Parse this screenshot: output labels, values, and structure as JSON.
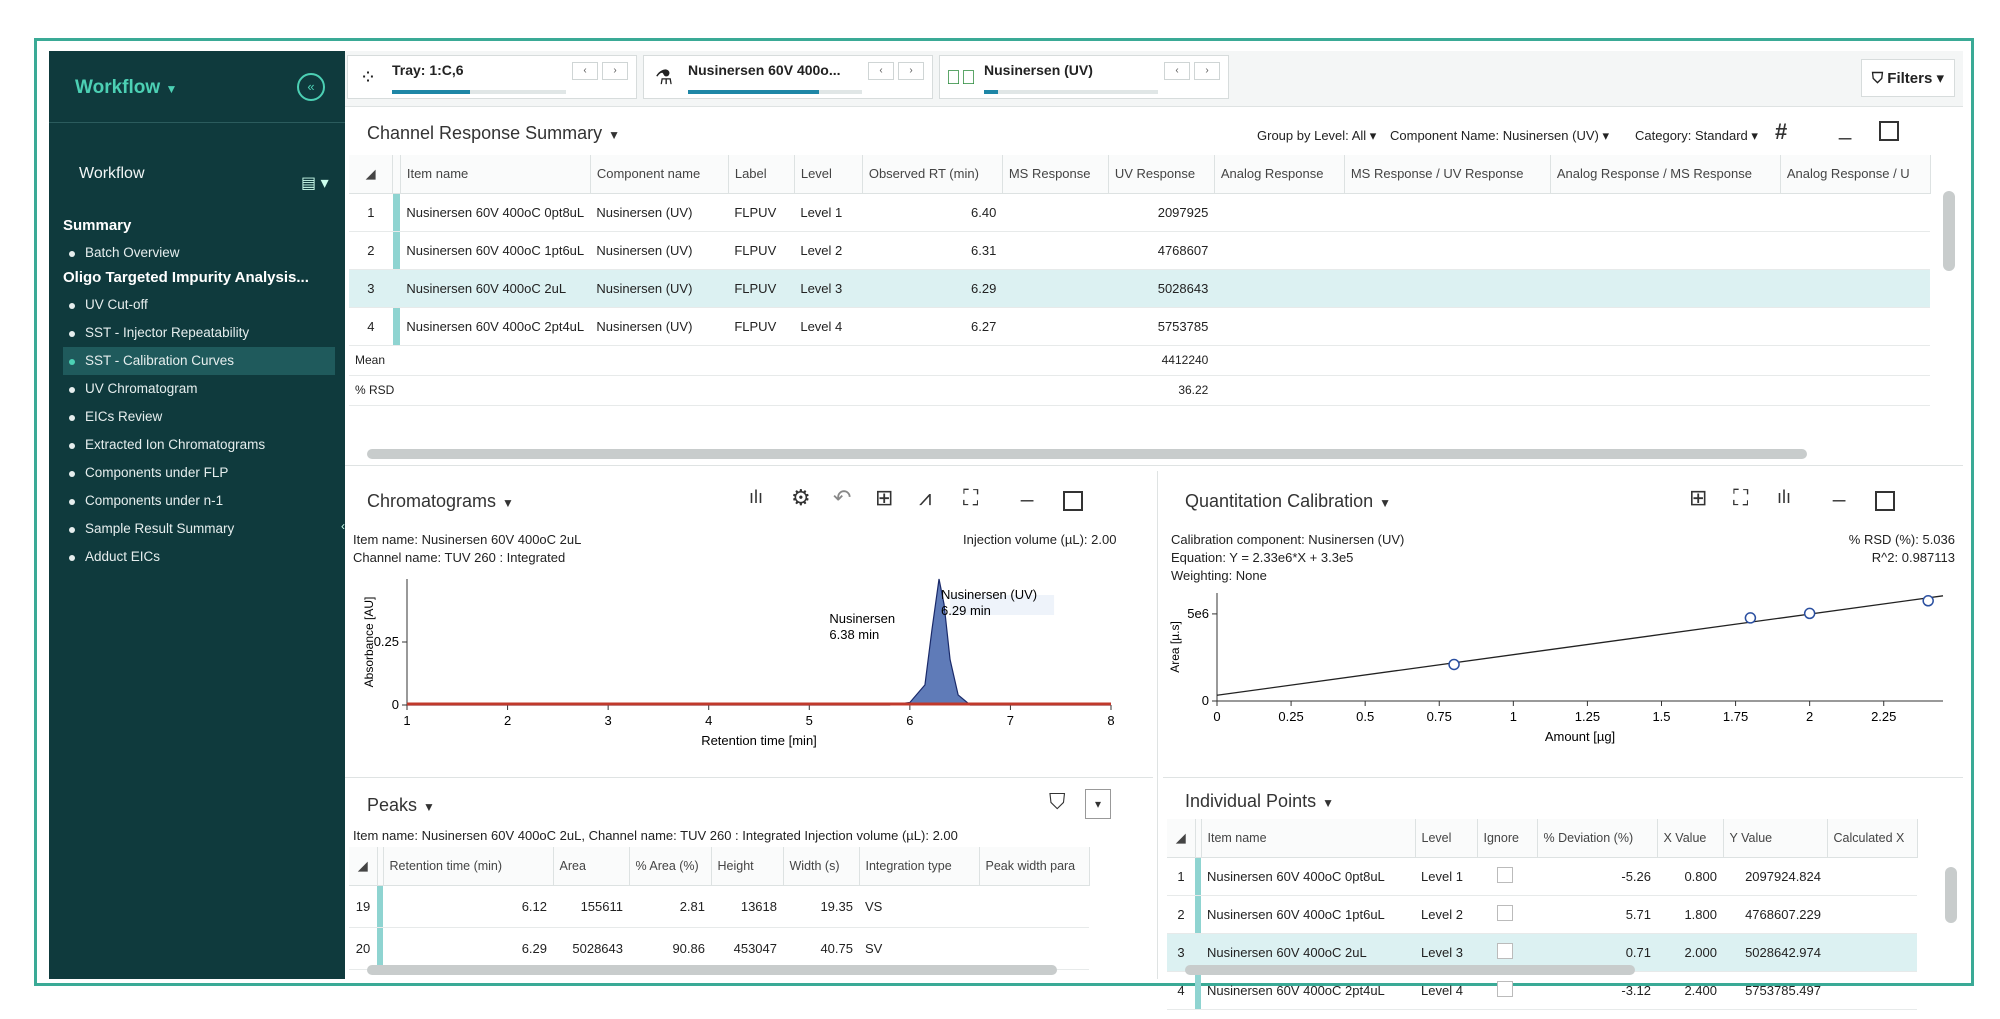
{
  "sidebar": {
    "title": "Workflow",
    "subtitle": "Workflow",
    "groups": [
      {
        "label": "Summary",
        "items": [
          "Batch Overview"
        ]
      },
      {
        "label": "Oligo Targeted Impurity Analysis...",
        "items": [
          "UV Cut-off",
          "SST - Injector Repeatability",
          "SST - Calibration Curves",
          "UV Chromatogram",
          "EICs Review",
          "Extracted Ion Chromatograms",
          "Components under FLP",
          "Components under n-1",
          "Sample Result Summary",
          "Adduct EICs"
        ]
      }
    ],
    "active_item": "SST - Calibration Curves"
  },
  "topbar": {
    "tray_label": "Tray: 1:C,6",
    "sample_label": "Nusinersen 60V 400o...",
    "component_label": "Nusinersen (UV)",
    "filters_label": "Filters",
    "tray_progress": 0.45,
    "sample_progress": 0.75,
    "component_progress": 0.08
  },
  "channel_summary": {
    "title": "Channel Response Summary",
    "group_by_label": "Group by Level:",
    "group_by_value": "All",
    "component_name_label": "Component Name:",
    "component_name_value": "Nusinersen (UV)",
    "category_label": "Category:",
    "category_value": "Standard",
    "columns": [
      "Item name",
      "Component name",
      "Label",
      "Level",
      "Observed RT (min)",
      "MS Response",
      "UV Response",
      "Analog Response",
      "MS Response / UV Response",
      "Analog Response / MS Response",
      "Analog Response / U"
    ],
    "rows": [
      [
        "1",
        "Nusinersen 60V 400oC 0pt8uL",
        "Nusinersen (UV)",
        "FLPUV",
        "Level 1",
        "6.40",
        "",
        "2097925"
      ],
      [
        "2",
        "Nusinersen 60V 400oC 1pt6uL",
        "Nusinersen (UV)",
        "FLPUV",
        "Level 2",
        "6.31",
        "",
        "4768607"
      ],
      [
        "3",
        "Nusinersen 60V 400oC 2uL",
        "Nusinersen (UV)",
        "FLPUV",
        "Level 3",
        "6.29",
        "",
        "5028643"
      ],
      [
        "4",
        "Nusinersen 60V 400oC 2pt4uL",
        "Nusinersen (UV)",
        "FLPUV",
        "Level 4",
        "6.27",
        "",
        "5753785"
      ]
    ],
    "mean_label": "Mean",
    "mean_value": "4412240",
    "rsd_label": "% RSD",
    "rsd_value": "36.22"
  },
  "chromatograms": {
    "title": "Chromatograms",
    "item_name": "Item name: Nusinersen 60V 400oC 2uL",
    "channel_name": "Channel name: TUV 260 : Integrated",
    "injection_volume": "Injection volume (µL): 2.00",
    "ylabel": "Absorbance [AU]",
    "xlabel": "Retention time [min]",
    "peak_label_1a": "Nusinersen (UV)",
    "peak_label_1b": "6.29 min",
    "peak_label_2a": "Nusinersen",
    "peak_label_2b": "6.38 min"
  },
  "chart_data": [
    {
      "type": "line",
      "title": "",
      "xlabel": "Retention time [min]",
      "ylabel": "Absorbance [AU]",
      "xlim": [
        1,
        8
      ],
      "ylim": [
        0,
        0.5
      ],
      "x_ticks": [
        "1",
        "2",
        "3",
        "4",
        "5",
        "6",
        "7",
        "8"
      ],
      "y_ticks": [
        "0",
        "0.25"
      ],
      "series": [
        {
          "x": [
            1.0,
            5.8,
            6.0,
            6.15,
            6.22,
            6.29,
            6.34,
            6.4,
            6.48,
            6.6,
            8.0
          ],
          "y": [
            0.0,
            0.0,
            0.01,
            0.08,
            0.3,
            0.5,
            0.4,
            0.18,
            0.04,
            0.0,
            0.0
          ]
        }
      ],
      "annotations": [
        "Nusinersen (UV) 6.29 min",
        "Nusinersen 6.38 min"
      ]
    },
    {
      "type": "scatter",
      "title": "",
      "xlabel": "Amount [µg]",
      "ylabel": "Area [µ.s]",
      "xlim": [
        0,
        2.45
      ],
      "ylim": [
        0,
        6200000
      ],
      "x_ticks": [
        "0",
        "0.25",
        "0.5",
        "0.75",
        "1",
        "1.25",
        "1.5",
        "1.75",
        "2",
        "2.25"
      ],
      "y_ticks": [
        "0",
        "5e6"
      ],
      "points": [
        {
          "x": 0.8,
          "y": 2097925
        },
        {
          "x": 1.8,
          "y": 4768607
        },
        {
          "x": 2.0,
          "y": 5028643
        },
        {
          "x": 2.4,
          "y": 5753785
        }
      ],
      "fit": {
        "slope": 2330000,
        "intercept": 330000
      }
    }
  ],
  "calibration": {
    "title": "Quantitation Calibration",
    "component": "Calibration component: Nusinersen (UV)",
    "equation": "Equation: Y = 2.33e6*X + 3.3e5",
    "weighting": "Weighting: None",
    "rsd": "% RSD (%): 5.036",
    "r2": "R^2: 0.987113",
    "ylabel": "Area [µ.s]",
    "xlabel": "Amount [µg]"
  },
  "peaks": {
    "title": "Peaks",
    "info": "Item name: Nusinersen 60V 400oC 2uL, Channel name: TUV 260 : Integrated Injection volume (µL): 2.00",
    "columns": [
      "Retention time (min)",
      "Area",
      "% Area (%)",
      "Height",
      "Width (s)",
      "Integration type",
      "Peak width para"
    ],
    "rows": [
      [
        "19",
        "6.12",
        "155611",
        "2.81",
        "13618",
        "19.35",
        "VS"
      ],
      [
        "20",
        "6.29",
        "5028643",
        "90.86",
        "453047",
        "40.75",
        "SV"
      ]
    ]
  },
  "points": {
    "title": "Individual Points",
    "columns": [
      "Item name",
      "Level",
      "Ignore",
      "% Deviation (%)",
      "X Value",
      "Y Value",
      "Calculated X"
    ],
    "rows": [
      [
        "1",
        "Nusinersen 60V 400oC 0pt8uL",
        "Level 1",
        "-5.26",
        "0.800",
        "2097924.824"
      ],
      [
        "2",
        "Nusinersen 60V 400oC 1pt6uL",
        "Level 2",
        "5.71",
        "1.800",
        "4768607.229"
      ],
      [
        "3",
        "Nusinersen 60V 400oC 2uL",
        "Level 3",
        "0.71",
        "2.000",
        "5028642.974"
      ],
      [
        "4",
        "Nusinersen 60V 400oC 2pt4uL",
        "Level 4",
        "-3.12",
        "2.400",
        "5753785.497"
      ]
    ]
  },
  "colors": {
    "sidebar_bg": "#0f3a3d",
    "accent": "#4cd0b4",
    "selected_row": "#dcf1f2",
    "chrom_line": "#c0392b",
    "peak_fill": "#2a4fa0"
  }
}
